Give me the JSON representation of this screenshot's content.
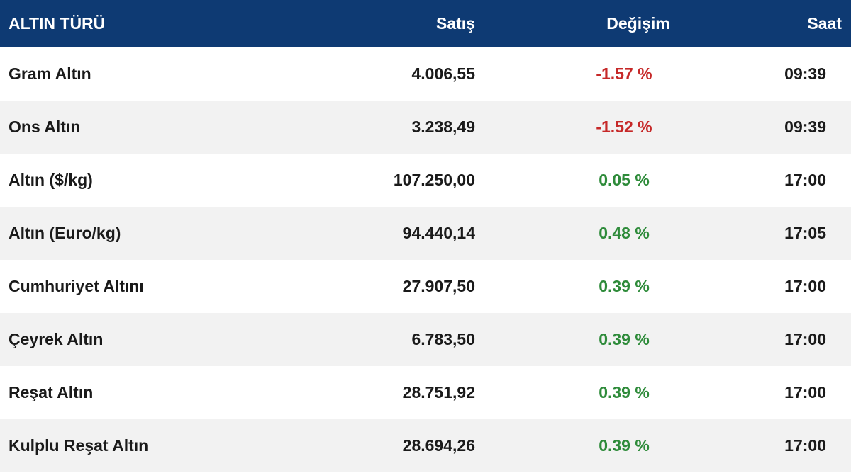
{
  "table": {
    "headers": [
      "ALTIN TÜRÜ",
      "Satış",
      "Değişim",
      "Saat"
    ],
    "rows": [
      [
        "Gram Altın",
        "4.006,55",
        "-1.57 %",
        "09:39"
      ],
      [
        "Ons Altın",
        "3.238,49",
        "-1.52 %",
        "09:39"
      ],
      [
        "Altın ($/kg)",
        "107.250,00",
        "0.05 %",
        "17:00"
      ],
      [
        "Altın (Euro/kg)",
        "94.440,14",
        "0.48 %",
        "17:05"
      ],
      [
        "Cumhuriyet Altını",
        "27.907,50",
        "0.39 %",
        "17:00"
      ],
      [
        "Çeyrek Altın",
        "6.783,50",
        "0.39 %",
        "17:00"
      ],
      [
        "Reşat Altın",
        "28.751,92",
        "0.39 %",
        "17:00"
      ],
      [
        "Kulplu Reşat Altın",
        "28.694,26",
        "0.39 %",
        "17:00"
      ]
    ]
  }
}
